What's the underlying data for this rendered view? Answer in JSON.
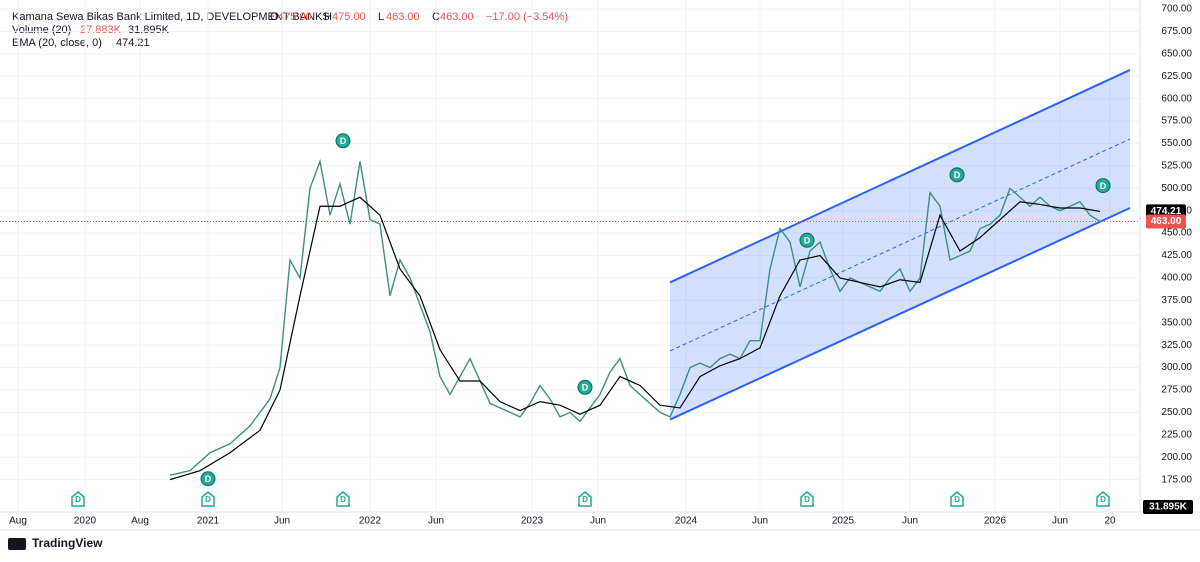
{
  "chart_data": {
    "type": "line",
    "title": "Kamana Sewa Bikas Bank Limited, 1D, DEVELOPMENT BANKS",
    "quote": [
      {
        "label": "O",
        "value": "475.00"
      },
      {
        "label": "H",
        "value": "475.00"
      },
      {
        "label": "L",
        "value": "463.00"
      },
      {
        "label": "C",
        "value": "463.00"
      }
    ],
    "change": "−17.00 (−3.54%)",
    "volume_legend": {
      "name": "Volume (20)",
      "volume": "27.883K",
      "average": "31.895K"
    },
    "ema_legend": {
      "name": "EMA (20, close, 0)",
      "value": 474.21
    },
    "last_price": {
      "value": 463,
      "label": "463.00"
    },
    "marker_label": "D",
    "markers": [
      {
        "x": 20.8,
        "y": 176
      },
      {
        "x": 34.3,
        "y": 553
      },
      {
        "x": 58.5,
        "y": 278
      },
      {
        "x": 80.7,
        "y": 442
      },
      {
        "x": 95.7,
        "y": 515
      },
      {
        "x": 110.3,
        "y": 503
      }
    ],
    "bottom_markers": [
      7.8,
      20.8,
      34.3,
      58.5,
      80.7,
      95.7,
      110.3
    ],
    "channel": {
      "x": [
        67,
        113
      ],
      "upper": [
        395,
        632
      ],
      "lower": [
        242,
        478
      ]
    },
    "xlim": [
      0,
      114
    ],
    "ylim": [
      140,
      700
    ],
    "xticks": [
      {
        "value": 1.8,
        "label": "Aug"
      },
      {
        "value": 8.5,
        "label": "2020"
      },
      {
        "value": 14,
        "label": "Aug"
      },
      {
        "value": 20.8,
        "label": "2021"
      },
      {
        "value": 28.2,
        "label": "Jun"
      },
      {
        "value": 37,
        "label": "2022"
      },
      {
        "value": 43.6,
        "label": "Jun"
      },
      {
        "value": 53.2,
        "label": "2023"
      },
      {
        "value": 59.8,
        "label": "Jun"
      },
      {
        "value": 68.6,
        "label": "2024"
      },
      {
        "value": 76,
        "label": "Jun"
      },
      {
        "value": 84.3,
        "label": "2025"
      },
      {
        "value": 91,
        "label": "Jun"
      },
      {
        "value": 99.5,
        "label": "2026"
      },
      {
        "value": 106,
        "label": "Jun"
      },
      {
        "value": 111,
        "label": "20"
      }
    ],
    "yticks": [
      {
        "value": 175,
        "label": "175.00"
      },
      {
        "value": 200,
        "label": "200.00"
      },
      {
        "value": 225,
        "label": "225.00"
      },
      {
        "value": 250,
        "label": "250.00"
      },
      {
        "value": 275,
        "label": "275.00"
      },
      {
        "value": 300,
        "label": "300.00"
      },
      {
        "value": 325,
        "label": "325.00"
      },
      {
        "value": 350,
        "label": "350.00"
      },
      {
        "value": 375,
        "label": "375.00"
      },
      {
        "value": 400,
        "label": "400.00"
      },
      {
        "value": 425,
        "label": "425.00"
      },
      {
        "value": 450,
        "label": "450.00"
      },
      {
        "value": 475,
        "label": "475.00"
      },
      {
        "value": 500,
        "label": "500.00"
      },
      {
        "value": 525,
        "label": "525.00"
      },
      {
        "value": 550,
        "label": "550.00"
      },
      {
        "value": 575,
        "label": "575.00"
      },
      {
        "value": 600,
        "label": "600.00"
      },
      {
        "value": 625,
        "label": "625.00"
      },
      {
        "value": 650,
        "label": "650.00"
      },
      {
        "value": 675,
        "label": "675.00"
      },
      {
        "value": 700,
        "label": "700.00"
      }
    ],
    "series": [
      {
        "color": "#3d8f7f",
        "x": [
          17,
          19,
          21,
          23,
          25,
          27,
          28,
          29,
          30,
          31,
          32,
          33,
          34,
          35,
          36,
          37,
          38,
          39,
          40,
          41,
          42,
          43,
          44,
          45,
          46,
          47,
          48,
          49,
          50,
          51,
          52,
          53,
          54,
          55,
          56,
          57,
          58,
          59,
          60,
          61,
          62,
          63,
          64,
          65,
          66,
          67,
          68,
          69,
          70,
          71,
          72,
          73,
          74,
          75,
          76,
          77,
          78,
          79,
          80,
          81,
          82,
          83,
          84,
          85,
          86,
          87,
          88,
          89,
          90,
          91,
          92,
          93,
          94,
          95,
          96,
          97,
          98,
          99,
          100,
          101,
          102,
          103,
          104,
          105,
          106,
          107,
          108,
          109,
          110
        ],
        "values": [
          180,
          185,
          205,
          215,
          235,
          265,
          300,
          420,
          400,
          500,
          530,
          470,
          505,
          460,
          530,
          465,
          460,
          380,
          420,
          400,
          370,
          340,
          290,
          270,
          290,
          310,
          285,
          260,
          255,
          250,
          245,
          260,
          280,
          265,
          245,
          250,
          240,
          255,
          270,
          295,
          310,
          280,
          270,
          260,
          250,
          245,
          270,
          300,
          305,
          300,
          310,
          315,
          310,
          330,
          330,
          410,
          455,
          440,
          390,
          430,
          440,
          410,
          385,
          400,
          395,
          390,
          385,
          400,
          410,
          385,
          400,
          495,
          480,
          420,
          425,
          430,
          455,
          460,
          470,
          500,
          490,
          480,
          490,
          480,
          475,
          480,
          485,
          470,
          463
        ]
      },
      {
        "color": "#000000",
        "x": [
          17,
          20,
          23,
          26,
          28,
          30,
          32,
          34,
          36,
          38,
          40,
          42,
          44,
          46,
          48,
          50,
          52,
          54,
          56,
          58,
          60,
          62,
          64,
          66,
          68,
          70,
          72,
          74,
          76,
          78,
          80,
          82,
          84,
          86,
          88,
          90,
          92,
          94,
          96,
          98,
          100,
          102,
          104,
          106,
          108,
          110
        ],
        "values": [
          175,
          185,
          205,
          230,
          275,
          380,
          480,
          480,
          490,
          470,
          410,
          380,
          320,
          285,
          285,
          262,
          252,
          262,
          258,
          248,
          258,
          290,
          280,
          258,
          255,
          290,
          302,
          310,
          322,
          380,
          420,
          425,
          400,
          395,
          390,
          398,
          395,
          470,
          430,
          445,
          465,
          485,
          482,
          478,
          478,
          474.21
        ]
      }
    ]
  }
}
